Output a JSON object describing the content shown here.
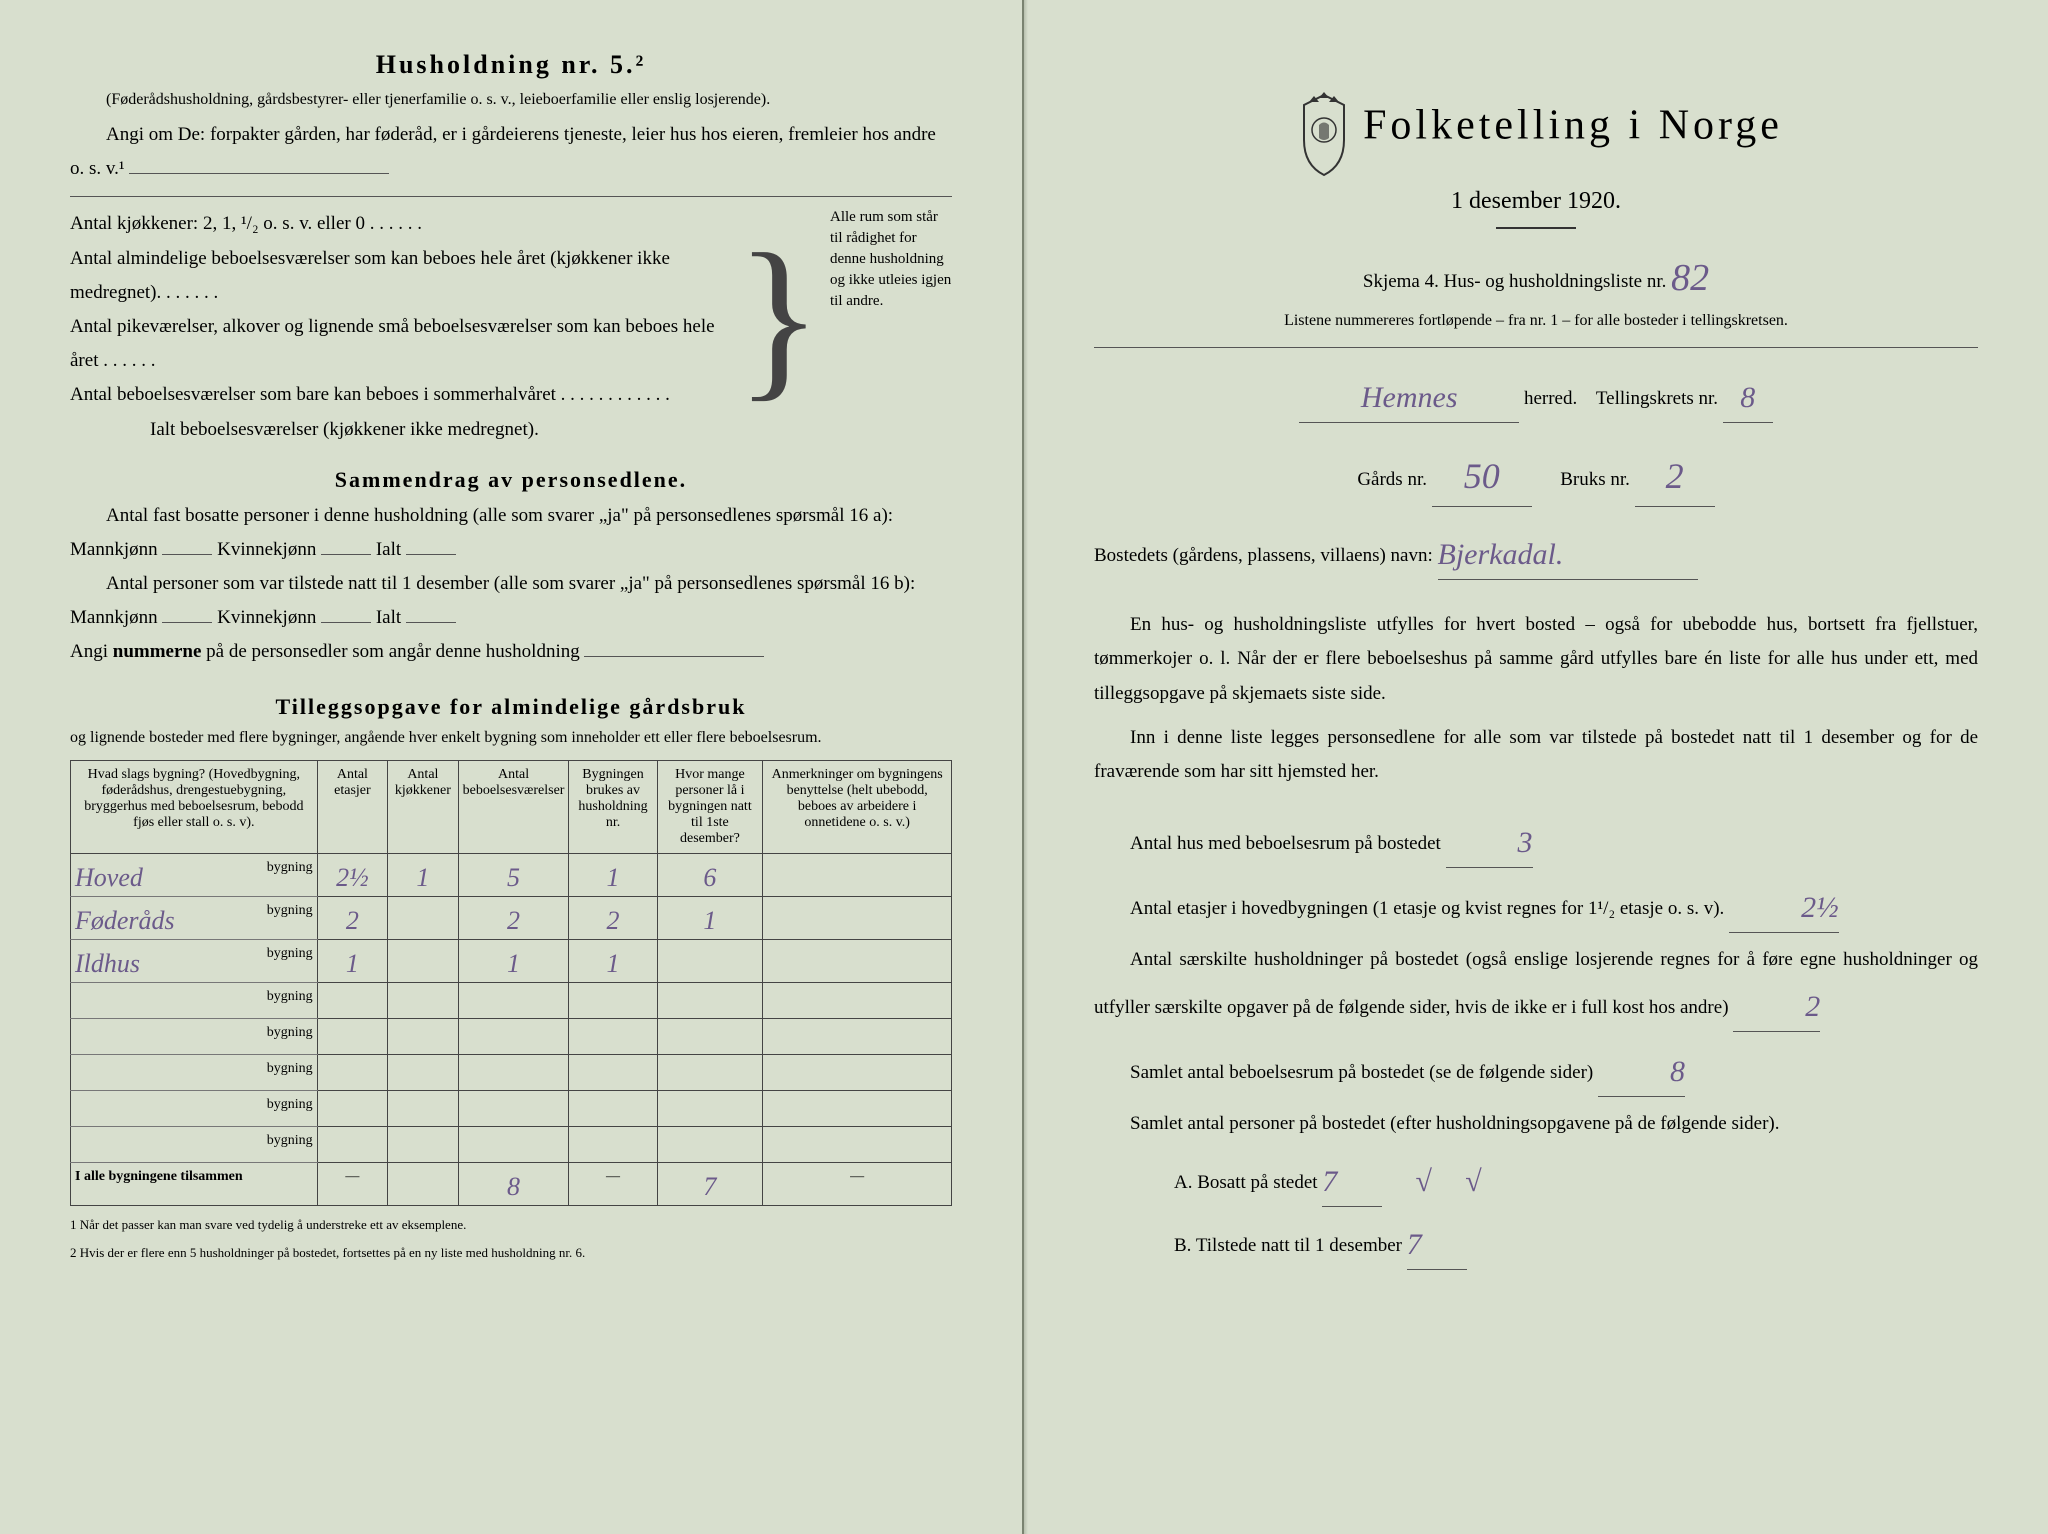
{
  "left": {
    "heading": "Husholdning nr. 5.²",
    "sub1": "(Føderådshusholdning, gårdsbestyrer- eller tjenerfamilie o. s. v., leieboerfamilie eller enslig losjerende).",
    "sub2": "Angi om De: forpakter gården, har føderåd, er i gårdeierens tjeneste, leier hus hos eieren, fremleier hos andre o. s. v.¹",
    "q1": "Antal kjøkkener: 2, 1, ¹/₂ o. s. v. eller 0 . . . . . .",
    "q2": "Antal almindelige beboelsesværelser som kan beboes hele året (kjøkkener ikke medregnet). . . . . . .",
    "q3": "Antal pikeværelser, alkover og lignende små beboelsesværelser som kan beboes hele året . . . . . .",
    "q4": "Antal beboelsesværelser som bare kan beboes i sommerhalvåret . . . . . . . . . . . .",
    "q5": "Ialt beboelsesværelser (kjøkkener ikke medregnet).",
    "side_text": "Alle rum som står til rådighet for denne husholdning og ikke utleies igjen til andre.",
    "section2": "Sammendrag av personsedlene.",
    "s2_l1": "Antal fast bosatte personer i denne husholdning (alle som svarer „ja\" på personsedlenes spørsmål 16 a): Mannkjønn",
    "s2_kv": "Kvinnekjønn",
    "s2_ialt": "Ialt",
    "s2_l2": "Antal personer som var tilstede natt til 1 desember (alle som svarer „ja\" på personsedlenes spørsmål 16 b): Mannkjønn",
    "s2_l3_a": "Angi ",
    "s2_l3_b": "nummerne",
    "s2_l3_c": " på de personsedler som angår denne husholdning",
    "section3": "Tilleggsopgave for almindelige gårdsbruk",
    "s3_sub": "og lignende bosteder med flere bygninger, angående hver enkelt bygning som inneholder ett eller flere beboelsesrum.",
    "table": {
      "headers": [
        "Hvad slags bygning?\n(Hovedbygning, føderådshus, drengestuebygning, bryggerhus med beboelsesrum, bebodd fjøs eller stall o. s. v).",
        "Antal etasjer",
        "Antal kjøkkener",
        "Antal beboelsesværelser",
        "Bygningen brukes av husholdning nr.",
        "Hvor mange personer lå i bygningen natt til 1ste desember?",
        "Anmerkninger om bygningens benyttelse (helt ubebodd, beboes av arbeidere i onnetidene o. s. v.)"
      ],
      "rows": [
        {
          "name": "Hoved",
          "v": [
            "2½",
            "1",
            "5",
            "1",
            "6",
            ""
          ]
        },
        {
          "name": "Føderåds",
          "v": [
            "2",
            "",
            "2",
            "2",
            "1",
            ""
          ]
        },
        {
          "name": "Ildhus",
          "v": [
            "1",
            "",
            "1",
            "1",
            "",
            ""
          ]
        },
        {
          "name": "",
          "v": [
            "",
            "",
            "",
            "",
            "",
            ""
          ]
        },
        {
          "name": "",
          "v": [
            "",
            "",
            "",
            "",
            "",
            ""
          ]
        },
        {
          "name": "",
          "v": [
            "",
            "",
            "",
            "",
            "",
            ""
          ]
        },
        {
          "name": "",
          "v": [
            "",
            "",
            "",
            "",
            "",
            ""
          ]
        },
        {
          "name": "",
          "v": [
            "",
            "",
            "",
            "",
            "",
            ""
          ]
        }
      ],
      "suffix": "bygning",
      "total_label": "I alle bygningene tilsammen",
      "totals": [
        "—",
        "",
        "8",
        "—",
        "7",
        "—"
      ]
    },
    "fn1": "1  Når det passer kan man svare ved tydelig å understreke ett av eksemplene.",
    "fn2": "2  Hvis der er flere enn 5 husholdninger på bostedet, fortsettes på en ny liste med husholdning nr. 6."
  },
  "right": {
    "title": "Folketelling i Norge",
    "date": "1 desember 1920.",
    "skjema_a": "Skjema 4.  Hus- og husholdningsliste nr.",
    "skjema_nr": "82",
    "liste_note": "Listene nummereres fortløpende – fra nr. 1 – for alle bosteder i tellingskretsen.",
    "herred_val": "Hemnes",
    "herred_lbl": "herred.",
    "krets_lbl": "Tellingskrets nr.",
    "krets_val": "8",
    "gards_lbl": "Gårds nr.",
    "gards_val": "50",
    "bruks_lbl": "Bruks nr.",
    "bruks_val": "2",
    "bosted_lbl": "Bostedets (gårdens, plassens, villaens) navn:",
    "bosted_val": "Bjerkadal.",
    "para1": "En hus- og husholdningsliste utfylles for hvert bosted – også for ubebodde hus, bortsett fra fjellstuer, tømmerkojer o. l. Når der er flere beboelseshus på samme gård utfylles bare én liste for alle hus under ett, med tilleggsopgave på skjemaets siste side.",
    "para2": "Inn i denne liste legges personsedlene for alle som var tilstede på bostedet natt til 1 desember og for de fraværende som har sitt hjemsted her.",
    "q_hus": "Antal hus med beboelsesrum på bostedet",
    "q_hus_v": "3",
    "q_et_a": "Antal etasjer i hovedbygningen (1 etasje og kvist regnes for 1¹/₂ etasje o. s. v).",
    "q_et_v": "2½",
    "q_hush": "Antal særskilte husholdninger på bostedet (også enslige losjerende regnes for å føre egne husholdninger og utfyller særskilte opgaver på de følgende sider, hvis de ikke er i full kost hos andre)",
    "q_hush_v": "2",
    "q_rum": "Samlet antal beboelsesrum på bostedet (se de følgende sider)",
    "q_rum_v": "8",
    "q_pers": "Samlet antal personer på bostedet (efter husholdningsopgavene på de følgende sider).",
    "q_a_lbl": "A.  Bosatt på stedet",
    "q_a_v": "7",
    "q_b_lbl": "B.  Tilstede natt til 1 desember",
    "q_b_v": "7"
  },
  "colors": {
    "bg": "#d8dfce",
    "ink": "#2a2a2a",
    "handwriting": "#6b5a8a"
  }
}
